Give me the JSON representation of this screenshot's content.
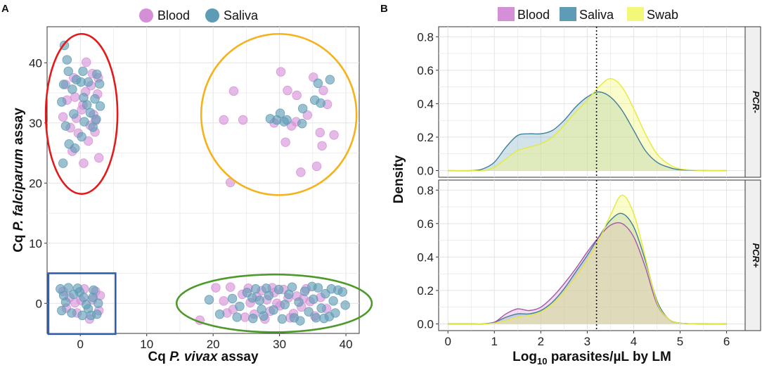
{
  "panels": {
    "a": {
      "letter": "A"
    },
    "b": {
      "letter": "B"
    }
  },
  "colors": {
    "blood": "#d58fd7",
    "saliva": "#5e9bb4",
    "swab": "#f3f77a",
    "ellipse_red": "#e31a1c",
    "ellipse_orange": "#f5b21b",
    "ellipse_green": "#4d9a2a",
    "box_blue": "#2f5fb3"
  },
  "chart_data": [
    {
      "type": "scatter",
      "title": "",
      "xlabel": {
        "prefix": "Cq ",
        "species": "P. vivax",
        "suffix": " assay"
      },
      "ylabel": {
        "prefix": "Cq ",
        "species": "P. falciparum",
        "suffix": " assay"
      },
      "xlim": [
        -5,
        42
      ],
      "ylim": [
        -5,
        46
      ],
      "xticks": [
        "0",
        "10",
        "20",
        "30",
        "40"
      ],
      "xtick_values": [
        0,
        10,
        20,
        30,
        40
      ],
      "yticks": [
        "0",
        "10",
        "20",
        "30",
        "40"
      ],
      "ytick_values": [
        0,
        10,
        20,
        30,
        40
      ],
      "legend": {
        "position": "top",
        "entries": [
          "Blood",
          "Saliva"
        ]
      },
      "grid": true,
      "series": [
        {
          "name": "Blood",
          "points": [
            [
              -1.2,
              25.3
            ],
            [
              0.5,
              23.3
            ],
            [
              2.2,
              28.5
            ],
            [
              -0.6,
              30.8
            ],
            [
              1.5,
              29.6
            ],
            [
              -2.0,
              33.8
            ],
            [
              0.8,
              35.2
            ],
            [
              2.6,
              34.8
            ],
            [
              -1.0,
              37.5
            ],
            [
              1.8,
              38.2
            ],
            [
              -2.6,
              31.0
            ],
            [
              0.2,
              32.2
            ],
            [
              2.0,
              31.4
            ],
            [
              -0.3,
              28.3
            ],
            [
              1.2,
              27.0
            ],
            [
              2.8,
              24.2
            ],
            [
              -2.2,
              36.4
            ],
            [
              0.9,
              40.1
            ],
            [
              2.7,
              37.5
            ],
            [
              -1.5,
              29.2
            ],
            [
              0.4,
              33.0
            ],
            [
              1.6,
              36.2
            ],
            [
              -0.8,
              34.3
            ],
            [
              2.3,
              30.4
            ],
            [
              23.1,
              35.3
            ],
            [
              21.6,
              30.5
            ],
            [
              24.5,
              30.5
            ],
            [
              22.6,
              20.1
            ],
            [
              29.2,
              30.0
            ],
            [
              31.2,
              35.4
            ],
            [
              32.6,
              34.6
            ],
            [
              30.9,
              26.8
            ],
            [
              33.2,
              21.8
            ],
            [
              34.2,
              31.3
            ],
            [
              35.6,
              22.8
            ],
            [
              36.1,
              28.4
            ],
            [
              38.2,
              28.0
            ],
            [
              36.6,
              35.4
            ],
            [
              30.2,
              38.5
            ],
            [
              31.8,
              29.5
            ],
            [
              37.2,
              33.1
            ],
            [
              32.5,
              30.2
            ],
            [
              35.1,
              37.6
            ],
            [
              36.4,
              26.2
            ],
            [
              18.0,
              -2.8
            ],
            [
              20.4,
              2.6
            ],
            [
              21.6,
              0.4
            ],
            [
              22.6,
              2.7
            ],
            [
              23.0,
              -1.0
            ],
            [
              24.4,
              1.5
            ],
            [
              25.6,
              0.1
            ],
            [
              26.2,
              -1.8
            ],
            [
              27.3,
              2.1
            ],
            [
              28.1,
              0.6
            ],
            [
              28.6,
              -1.3
            ],
            [
              29.2,
              1.8
            ],
            [
              30.1,
              -0.4
            ],
            [
              30.6,
              2.3
            ],
            [
              31.3,
              0.9
            ],
            [
              32.1,
              -1.7
            ],
            [
              32.6,
              1.2
            ],
            [
              33.3,
              -0.6
            ],
            [
              34.0,
              2.4
            ],
            [
              34.6,
              0.3
            ],
            [
              35.3,
              -2.1
            ],
            [
              36.2,
              1.0
            ],
            [
              37.1,
              -0.9
            ],
            [
              24.8,
              -2.3
            ],
            [
              26.6,
              1.1
            ],
            [
              27.8,
              -2.6
            ],
            [
              29.6,
              0.0
            ],
            [
              31.6,
              -2.4
            ],
            [
              33.6,
              0.8
            ],
            [
              25.3,
              2.5
            ],
            [
              28.9,
              2.6
            ],
            [
              22.1,
              -1.6
            ],
            [
              -2.6,
              2.0
            ],
            [
              -1.6,
              1.0
            ],
            [
              -0.5,
              -1.6
            ],
            [
              0.6,
              2.4
            ],
            [
              1.8,
              0.6
            ],
            [
              2.8,
              -1.2
            ],
            [
              -2.1,
              -0.8
            ],
            [
              0.1,
              0.5
            ],
            [
              1.4,
              -2.6
            ],
            [
              2.3,
              2.0
            ],
            [
              -0.8,
              0.1
            ],
            [
              3.0,
              1.3
            ]
          ]
        },
        {
          "name": "Saliva",
          "points": [
            [
              -2.4,
              42.9
            ],
            [
              -1.8,
              38.6
            ],
            [
              0.4,
              38.6
            ],
            [
              -2.5,
              36.4
            ],
            [
              0.1,
              36.8
            ],
            [
              2.5,
              38.1
            ],
            [
              -1.2,
              35.6
            ],
            [
              1.0,
              33.0
            ],
            [
              -2.8,
              33.5
            ],
            [
              -1.0,
              31.5
            ],
            [
              1.5,
              31.7
            ],
            [
              3.0,
              32.8
            ],
            [
              -2.2,
              29.5
            ],
            [
              0.6,
              30.2
            ],
            [
              2.4,
              30.6
            ],
            [
              -1.7,
              26.5
            ],
            [
              0.2,
              27.7
            ],
            [
              -0.8,
              25.8
            ],
            [
              -2.6,
              23.3
            ],
            [
              1.9,
              29.3
            ],
            [
              -2.0,
              40.5
            ],
            [
              1.2,
              36.8
            ],
            [
              2.9,
              36.5
            ],
            [
              0.5,
              34.2
            ],
            [
              -0.6,
              37.2
            ],
            [
              2.2,
              34.0
            ],
            [
              28.6,
              30.7
            ],
            [
              29.6,
              30.5
            ],
            [
              30.1,
              31.6
            ],
            [
              31.1,
              30.5
            ],
            [
              33.4,
              29.9
            ],
            [
              35.3,
              33.8
            ],
            [
              36.2,
              33.3
            ],
            [
              37.6,
              37.2
            ],
            [
              35.8,
              36.6
            ],
            [
              33.5,
              32.4
            ],
            [
              30.7,
              30.2
            ],
            [
              19.4,
              0.6
            ],
            [
              21.0,
              -1.8
            ],
            [
              22.9,
              0.8
            ],
            [
              24.0,
              -0.5
            ],
            [
              25.1,
              1.8
            ],
            [
              26.0,
              -2.5
            ],
            [
              27.0,
              0.5
            ],
            [
              27.6,
              -2.1
            ],
            [
              28.4,
              1.3
            ],
            [
              29.1,
              -1.1
            ],
            [
              29.9,
              2.3
            ],
            [
              30.8,
              -0.2
            ],
            [
              31.4,
              1.5
            ],
            [
              32.2,
              -2.4
            ],
            [
              32.9,
              0.2
            ],
            [
              33.8,
              2.0
            ],
            [
              34.4,
              -1.4
            ],
            [
              35.1,
              0.7
            ],
            [
              35.8,
              2.6
            ],
            [
              36.3,
              -0.8
            ],
            [
              36.9,
              1.6
            ],
            [
              37.5,
              -2.2
            ],
            [
              38.1,
              0.4
            ],
            [
              38.8,
              2.2
            ],
            [
              39.5,
              1.9
            ],
            [
              38.4,
              -1.6
            ],
            [
              37.8,
              2.4
            ],
            [
              36.7,
              -2.5
            ],
            [
              35.5,
              -2.4
            ],
            [
              34.9,
              2.8
            ],
            [
              33.1,
              -2.9
            ],
            [
              31.9,
              2.7
            ],
            [
              30.4,
              -2.6
            ],
            [
              28.0,
              2.5
            ],
            [
              26.4,
              2.4
            ],
            [
              23.6,
              -2.3
            ],
            [
              25.9,
              0.9
            ],
            [
              27.3,
              -1.0
            ],
            [
              39.9,
              -0.3
            ],
            [
              -3.0,
              2.4
            ],
            [
              -2.2,
              0.2
            ],
            [
              -1.3,
              -1.6
            ],
            [
              -0.4,
              2.5
            ],
            [
              0.5,
              1.0
            ],
            [
              1.2,
              -0.9
            ],
            [
              2.0,
              2.2
            ],
            [
              2.7,
              0.0
            ],
            [
              -2.8,
              -1.2
            ],
            [
              -1.0,
              1.5
            ],
            [
              0.3,
              -2.0
            ],
            [
              1.6,
              -2.0
            ],
            [
              2.5,
              -1.8
            ],
            [
              -1.8,
              2.6
            ],
            [
              0.9,
              -0.2
            ],
            [
              -0.1,
              1.9
            ],
            [
              1.9,
              1.0
            ],
            [
              -2.5,
              1.3
            ]
          ]
        }
      ],
      "annotations": [
        {
          "shape": "ellipse",
          "color": "ellipse_red",
          "cx": 0.2,
          "cy": 31.5,
          "rx": 5.4,
          "ry": 13.3
        },
        {
          "shape": "ellipse",
          "color": "ellipse_orange",
          "cx": 29.9,
          "cy": 31.4,
          "rx": 11.7,
          "ry": 13.4
        },
        {
          "shape": "ellipse",
          "color": "ellipse_green",
          "cx": 29.2,
          "cy": 0,
          "rx": 14.7,
          "ry": 4.8
        },
        {
          "shape": "rect",
          "color": "box_blue",
          "x0": -4.8,
          "x1": 5.3,
          "y0": -5.1,
          "y1": 5.0
        }
      ]
    },
    {
      "type": "area",
      "title": "",
      "xlabel": {
        "base": "Log",
        "sub": "10",
        "rest": " parasites/µL by LM"
      },
      "ylabel": "Density",
      "xlim": [
        -0.2,
        6.4
      ],
      "xticks": [
        "0",
        "1",
        "2",
        "3",
        "4",
        "5",
        "6"
      ],
      "xtick_values": [
        0,
        1,
        2,
        3,
        4,
        5,
        6
      ],
      "ylim": [
        -0.04,
        0.86
      ],
      "yticks": [
        "0.0",
        "0.2",
        "0.4",
        "0.6",
        "0.8"
      ],
      "ytick_values": [
        0,
        0.2,
        0.4,
        0.6,
        0.8
      ],
      "vline_x": 3.2,
      "legend": {
        "position": "top",
        "entries": [
          "Blood",
          "Saliva",
          "Swab"
        ]
      },
      "grid": true,
      "x": [
        0,
        0.5,
        0.75,
        1,
        1.25,
        1.5,
        1.75,
        2,
        2.25,
        2.5,
        2.75,
        3,
        3.25,
        3.5,
        3.75,
        4,
        4.25,
        4.5,
        4.75,
        5,
        5.5,
        6
      ],
      "facets": [
        {
          "label": "PCR-",
          "series": [
            {
              "name": "Saliva",
              "values": [
                0,
                0,
                0.01,
                0.05,
                0.14,
                0.21,
                0.22,
                0.22,
                0.24,
                0.3,
                0.38,
                0.44,
                0.47,
                0.44,
                0.36,
                0.24,
                0.12,
                0.05,
                0.02,
                0.005,
                0,
                0
              ]
            },
            {
              "name": "Swab",
              "values": [
                0,
                0,
                0,
                0.02,
                0.07,
                0.12,
                0.14,
                0.16,
                0.2,
                0.27,
                0.35,
                0.42,
                0.5,
                0.55,
                0.5,
                0.37,
                0.22,
                0.1,
                0.04,
                0.01,
                0,
                0
              ]
            }
          ]
        },
        {
          "label": "PCR+",
          "series": [
            {
              "name": "Blood",
              "values": [
                0,
                0,
                0,
                0.01,
                0.06,
                0.09,
                0.08,
                0.1,
                0.16,
                0.24,
                0.33,
                0.43,
                0.52,
                0.59,
                0.6,
                0.52,
                0.34,
                0.12,
                0.03,
                0.005,
                0,
                0
              ]
            },
            {
              "name": "Saliva",
              "values": [
                0,
                0,
                0,
                0.01,
                0.04,
                0.06,
                0.06,
                0.08,
                0.13,
                0.21,
                0.31,
                0.41,
                0.52,
                0.62,
                0.66,
                0.58,
                0.38,
                0.14,
                0.03,
                0.005,
                0,
                0
              ]
            },
            {
              "name": "Swab",
              "values": [
                0,
                0,
                0,
                0.005,
                0.02,
                0.04,
                0.05,
                0.07,
                0.12,
                0.19,
                0.28,
                0.38,
                0.5,
                0.65,
                0.77,
                0.66,
                0.4,
                0.13,
                0.03,
                0.005,
                0,
                0
              ]
            }
          ]
        }
      ]
    }
  ]
}
